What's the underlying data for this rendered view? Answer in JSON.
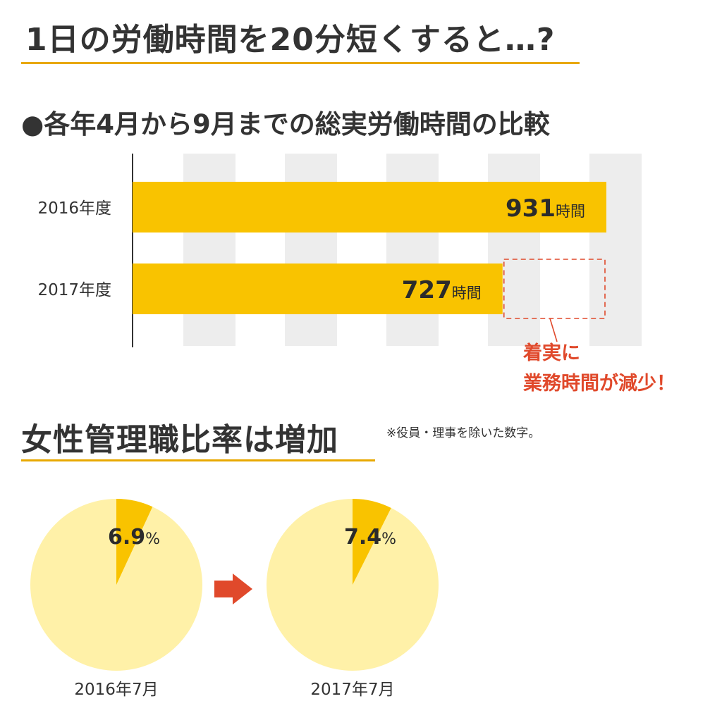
{
  "header": {
    "title": "1日の労働時間を20分短くすると…?",
    "subtitle": "●各年4月から9月までの総実労働時間の比較",
    "female_title": "女性管理職比率は増加",
    "female_note": "※役員・理事を除いた数字。"
  },
  "colors": {
    "bar": "#f9c300",
    "pie_slice": "#f9c300",
    "pie_base": "#fff1a8",
    "grid_band": "#ededed",
    "accent_red": "#e0492b",
    "rule": "#e8a800"
  },
  "chart_data": [
    {
      "type": "bar",
      "orientation": "horizontal",
      "title": "●各年4月から9月までの総実労働時間の比較",
      "categories": [
        "2016年度",
        "2017年度"
      ],
      "values": [
        931,
        727
      ],
      "value_labels": [
        "931",
        "727"
      ],
      "unit": "時間",
      "xlim": [
        0,
        960
      ],
      "grid": "vertical bands",
      "annotation": {
        "lines": [
          "着実に",
          "業務時間が減少！"
        ],
        "compare_to": 931
      }
    },
    {
      "type": "pie",
      "title": "女性管理職比率は増加",
      "pies": [
        {
          "label": "2016年7月",
          "value": 6.9,
          "value_text": "6.9",
          "unit": "%"
        },
        {
          "label": "2017年7月",
          "value": 7.4,
          "value_text": "7.4",
          "unit": "%"
        }
      ]
    }
  ]
}
